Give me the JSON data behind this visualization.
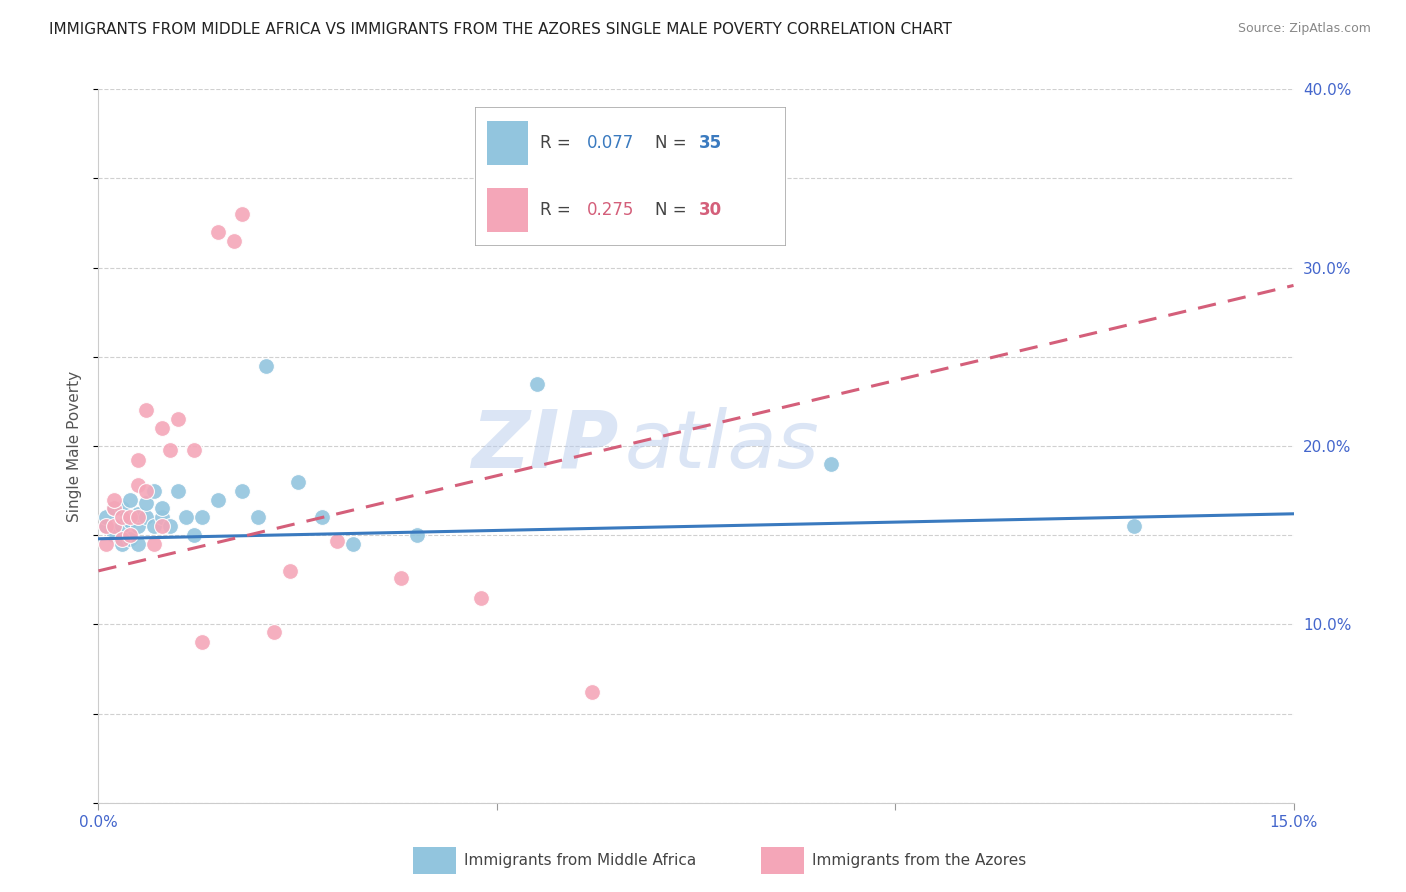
{
  "title": "IMMIGRANTS FROM MIDDLE AFRICA VS IMMIGRANTS FROM THE AZORES SINGLE MALE POVERTY CORRELATION CHART",
  "source": "Source: ZipAtlas.com",
  "ylabel_label": "Single Male Poverty",
  "x_min": 0.0,
  "x_max": 0.15,
  "y_min": 0.0,
  "y_max": 0.4,
  "blue_color": "#92c5de",
  "pink_color": "#f4a6b8",
  "blue_line_color": "#3a7abf",
  "pink_line_color": "#d45f7a",
  "legend_blue_r": "0.077",
  "legend_blue_n": "35",
  "legend_pink_r": "0.275",
  "legend_pink_n": "30",
  "legend_label_blue": "Immigrants from Middle Africa",
  "legend_label_pink": "Immigrants from the Azores",
  "watermark_zip": "ZIP",
  "watermark_atlas": "atlas",
  "blue_scatter_x": [
    0.001,
    0.001,
    0.002,
    0.002,
    0.003,
    0.003,
    0.003,
    0.004,
    0.004,
    0.004,
    0.005,
    0.005,
    0.005,
    0.006,
    0.006,
    0.007,
    0.007,
    0.008,
    0.008,
    0.009,
    0.01,
    0.011,
    0.012,
    0.013,
    0.015,
    0.018,
    0.02,
    0.021,
    0.025,
    0.028,
    0.032,
    0.04,
    0.055,
    0.092,
    0.13
  ],
  "blue_scatter_y": [
    0.155,
    0.16,
    0.15,
    0.165,
    0.145,
    0.155,
    0.165,
    0.148,
    0.158,
    0.17,
    0.145,
    0.155,
    0.162,
    0.16,
    0.168,
    0.155,
    0.175,
    0.16,
    0.165,
    0.155,
    0.175,
    0.16,
    0.15,
    0.16,
    0.17,
    0.175,
    0.16,
    0.245,
    0.18,
    0.16,
    0.145,
    0.15,
    0.235,
    0.19,
    0.155
  ],
  "pink_scatter_x": [
    0.001,
    0.001,
    0.002,
    0.002,
    0.002,
    0.003,
    0.003,
    0.004,
    0.004,
    0.005,
    0.005,
    0.005,
    0.006,
    0.006,
    0.007,
    0.008,
    0.008,
    0.009,
    0.01,
    0.012,
    0.013,
    0.015,
    0.017,
    0.018,
    0.022,
    0.024,
    0.03,
    0.038,
    0.048,
    0.062
  ],
  "pink_scatter_y": [
    0.145,
    0.155,
    0.165,
    0.155,
    0.17,
    0.148,
    0.16,
    0.15,
    0.16,
    0.178,
    0.192,
    0.16,
    0.175,
    0.22,
    0.145,
    0.155,
    0.21,
    0.198,
    0.215,
    0.198,
    0.09,
    0.32,
    0.315,
    0.33,
    0.096,
    0.13,
    0.147,
    0.126,
    0.115,
    0.062
  ],
  "blue_line_x0": 0.0,
  "blue_line_y0": 0.148,
  "blue_line_x1": 0.15,
  "blue_line_y1": 0.162,
  "pink_line_x0": 0.0,
  "pink_line_y0": 0.13,
  "pink_line_x1": 0.15,
  "pink_line_y1": 0.29,
  "background_color": "#ffffff",
  "grid_color": "#d0d0d0",
  "axis_tick_color": "#4466cc",
  "title_color": "#222222",
  "source_color": "#888888",
  "ylabel_color": "#555555"
}
